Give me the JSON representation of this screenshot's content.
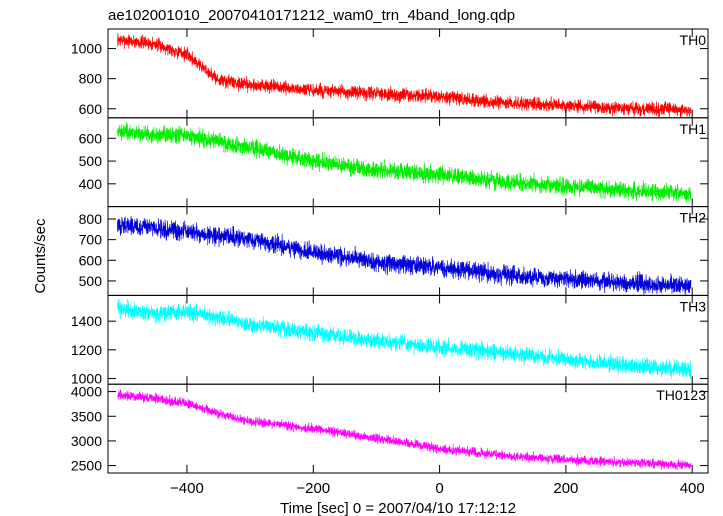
{
  "chart_data": {
    "type": "line",
    "title": "ae102001010_20070410171212_wam0_trn_4band_long.qdp",
    "xlabel": "Time [sec] 0 = 2007/04/10 17:12:12",
    "ylabel": "Counts/sec",
    "xlim": [
      -525,
      425
    ],
    "x_ticks": [
      -400,
      -200,
      0,
      200,
      400
    ],
    "x_tick_labels": [
      "−400",
      "−200",
      "0",
      "200",
      "400"
    ],
    "x_data_range": [
      -510,
      398
    ],
    "grid": false,
    "panels": [
      {
        "name": "TH0",
        "color": "#ff0000",
        "ylim": [
          540,
          1130
        ],
        "y_ticks": [
          600,
          800,
          1000
        ],
        "y_tick_labels": [
          "600",
          "800",
          "1000"
        ],
        "trend_x": [
          -510,
          -450,
          -400,
          -370,
          -350,
          -300,
          -200,
          -100,
          0,
          100,
          200,
          300,
          398
        ],
        "trend_y": [
          1060,
          1030,
          960,
          860,
          790,
          760,
          720,
          700,
          680,
          640,
          620,
          600,
          590
        ],
        "noise": 22
      },
      {
        "name": "TH1",
        "color": "#00ee00",
        "ylim": [
          300,
          690
        ],
        "y_ticks": [
          400,
          500,
          600
        ],
        "y_tick_labels": [
          "400",
          "500",
          "600"
        ],
        "trend_x": [
          -510,
          -400,
          -300,
          -200,
          -100,
          0,
          100,
          200,
          300,
          398
        ],
        "trend_y": [
          625,
          610,
          560,
          500,
          460,
          440,
          410,
          390,
          370,
          355
        ],
        "noise": 18
      },
      {
        "name": "TH2",
        "color": "#0000dd",
        "ylim": [
          430,
          860
        ],
        "y_ticks": [
          500,
          600,
          700,
          800
        ],
        "y_tick_labels": [
          "500",
          "600",
          "700",
          "800"
        ],
        "trend_x": [
          -510,
          -400,
          -300,
          -200,
          -100,
          0,
          100,
          200,
          300,
          398
        ],
        "trend_y": [
          770,
          740,
          700,
          640,
          590,
          565,
          530,
          510,
          490,
          480
        ],
        "noise": 22
      },
      {
        "name": "TH3",
        "color": "#00ffff",
        "ylim": [
          960,
          1580
        ],
        "y_ticks": [
          1000,
          1200,
          1400
        ],
        "y_tick_labels": [
          "1000",
          "1200",
          "1400"
        ],
        "trend_x": [
          -510,
          -450,
          -400,
          -300,
          -200,
          -100,
          0,
          100,
          200,
          300,
          398
        ],
        "trend_y": [
          1490,
          1450,
          1470,
          1380,
          1320,
          1260,
          1220,
          1180,
          1130,
          1090,
          1060
        ],
        "noise": 28
      },
      {
        "name": "TH0123",
        "color": "#ff00ff",
        "ylim": [
          2350,
          4150
        ],
        "y_ticks": [
          2500,
          3000,
          3500,
          4000
        ],
        "y_tick_labels": [
          "2500",
          "3000",
          "3500",
          "4000"
        ],
        "trend_x": [
          -510,
          -450,
          -400,
          -350,
          -300,
          -200,
          -100,
          0,
          100,
          200,
          300,
          398
        ],
        "trend_y": [
          3940,
          3860,
          3760,
          3560,
          3400,
          3250,
          3050,
          2850,
          2700,
          2620,
          2560,
          2500
        ],
        "noise": 45
      }
    ]
  }
}
